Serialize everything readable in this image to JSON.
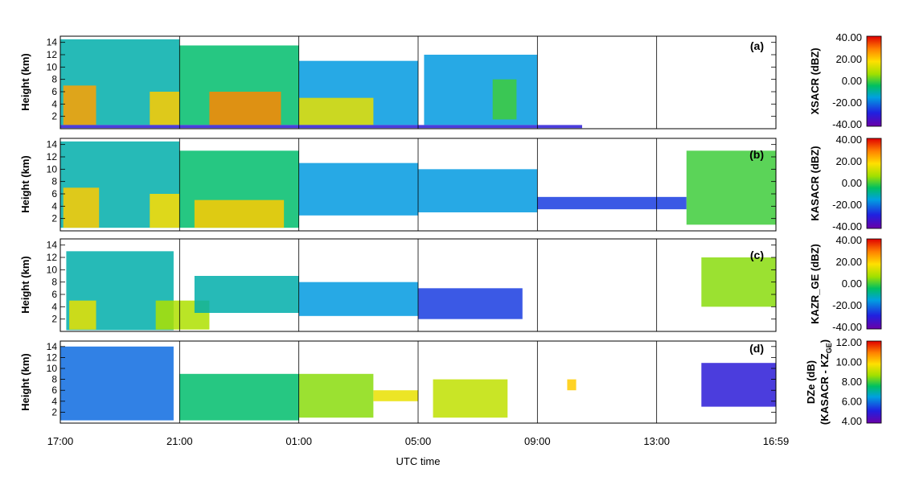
{
  "figure": {
    "xlabel": "UTC time",
    "time_ticks": [
      "17:00",
      "21:00",
      "01:00",
      "05:00",
      "09:00",
      "13:00",
      "16:59"
    ]
  },
  "chart_data": [
    {
      "type": "heatmap",
      "tag": "(a)",
      "ylabel": "Height (km)",
      "y_ticks": [
        2,
        4,
        6,
        8,
        10,
        12,
        14
      ],
      "ylim": [
        0,
        15
      ],
      "colorbar": {
        "title": "XSACR (dBZ)",
        "labels": [
          "40.00",
          "20.00",
          "0.00",
          "-20.00",
          "-40.00"
        ],
        "range": [
          -40,
          40
        ]
      },
      "data_end_hour": 17.5,
      "layers": [
        {
          "x0": 0,
          "x1": 4,
          "y0": 0.6,
          "y1": 14.5,
          "value": -10
        },
        {
          "x0": 0.1,
          "x1": 1.2,
          "y0": 0.6,
          "y1": 7,
          "value": 25
        },
        {
          "x0": 3.0,
          "x1": 4.0,
          "y0": 0.6,
          "y1": 6,
          "value": 20
        },
        {
          "x0": 4,
          "x1": 8,
          "y0": 0.6,
          "y1": 13.5,
          "value": -5
        },
        {
          "x0": 5,
          "x1": 7.4,
          "y0": 0.6,
          "y1": 6,
          "value": 28
        },
        {
          "x0": 8,
          "x1": 12,
          "y0": 0.6,
          "y1": 11,
          "value": -15
        },
        {
          "x0": 8,
          "x1": 10.5,
          "y0": 0.6,
          "y1": 5,
          "value": 15
        },
        {
          "x0": 12.2,
          "x1": 16,
          "y0": 0.6,
          "y1": 12,
          "value": -15
        },
        {
          "x0": 14.5,
          "x1": 15.3,
          "y0": 1.5,
          "y1": 8,
          "value": 0
        },
        {
          "x0": 0,
          "x1": 17.5,
          "y0": 0.1,
          "y1": 0.6,
          "value": -30
        }
      ]
    },
    {
      "type": "heatmap",
      "tag": "(b)",
      "ylabel": "Height (km)",
      "y_ticks": [
        2,
        4,
        6,
        8,
        10,
        12,
        14
      ],
      "ylim": [
        0,
        15
      ],
      "colorbar": {
        "title": "KASACR (dBZ)",
        "labels": [
          "40.00",
          "20.00",
          "0.00",
          "-20.00",
          "-40.00"
        ],
        "range": [
          -40,
          40
        ]
      },
      "data_end_hour": 24,
      "layers": [
        {
          "x0": 0,
          "x1": 4,
          "y0": 0.5,
          "y1": 14.5,
          "value": -10
        },
        {
          "x0": 0.1,
          "x1": 1.3,
          "y0": 0.5,
          "y1": 7,
          "value": 20
        },
        {
          "x0": 3,
          "x1": 4,
          "y0": 0.5,
          "y1": 6,
          "value": 18
        },
        {
          "x0": 4,
          "x1": 8,
          "y0": 0.5,
          "y1": 13,
          "value": -5
        },
        {
          "x0": 4.5,
          "x1": 7.5,
          "y0": 0.5,
          "y1": 5,
          "value": 20
        },
        {
          "x0": 8,
          "x1": 12,
          "y0": 2.5,
          "y1": 11,
          "value": -15
        },
        {
          "x0": 12,
          "x1": 16,
          "y0": 3,
          "y1": 10,
          "value": -15
        },
        {
          "x0": 16,
          "x1": 21,
          "y0": 3.5,
          "y1": 5.5,
          "value": -25
        },
        {
          "x0": 21,
          "x1": 24,
          "y0": 1,
          "y1": 13,
          "value": 0
        }
      ]
    },
    {
      "type": "heatmap",
      "tag": "(c)",
      "ylabel": "Height (km)",
      "y_ticks": [
        2,
        4,
        6,
        8,
        10,
        12,
        14
      ],
      "ylim": [
        0,
        15
      ],
      "colorbar": {
        "title": "KAZR_GE (dBZ)",
        "labels": [
          "40.00",
          "20.00",
          "0.00",
          "-20.00",
          "-40.00"
        ],
        "range": [
          -40,
          40
        ]
      },
      "data_end_hour": 24,
      "layers": [
        {
          "x0": 0.2,
          "x1": 3.8,
          "y0": 0.2,
          "y1": 13,
          "value": -10
        },
        {
          "x0": 0.3,
          "x1": 1.2,
          "y0": 0.3,
          "y1": 5,
          "value": 15
        },
        {
          "x0": 3.2,
          "x1": 5,
          "y0": 0.3,
          "y1": 5,
          "value": 8
        },
        {
          "x0": 4.5,
          "x1": 8,
          "y0": 3,
          "y1": 9,
          "value": -10
        },
        {
          "x0": 8,
          "x1": 12,
          "y0": 2.5,
          "y1": 8,
          "value": -15
        },
        {
          "x0": 12,
          "x1": 15.5,
          "y0": 2,
          "y1": 7,
          "value": -25
        },
        {
          "x0": 21.5,
          "x1": 24,
          "y0": 4,
          "y1": 12,
          "value": 5
        }
      ]
    },
    {
      "type": "heatmap",
      "tag": "(d)",
      "ylabel": "Height (km)",
      "y_ticks": [
        2,
        4,
        6,
        8,
        10,
        12,
        14
      ],
      "ylim": [
        0,
        15
      ],
      "colorbar": {
        "title_line1": "DZe (dB)",
        "title_line2": "(KASACR - KZ",
        "title_sub": "GE",
        "title_end": ")",
        "labels": [
          "12.00",
          "10.00",
          "8.00",
          "6.00",
          "4.00"
        ],
        "range": [
          4,
          12
        ]
      },
      "data_end_hour": 24,
      "layers": [
        {
          "x0": 0,
          "x1": 3.8,
          "y0": 0.5,
          "y1": 14,
          "value": 6
        },
        {
          "x0": 4,
          "x1": 8,
          "y0": 0.5,
          "y1": 9,
          "value": 7.5
        },
        {
          "x0": 8,
          "x1": 10.5,
          "y0": 1,
          "y1": 9,
          "value": 8.5
        },
        {
          "x0": 10.5,
          "x1": 12,
          "y0": 4,
          "y1": 6,
          "value": 9.5
        },
        {
          "x0": 12.5,
          "x1": 15,
          "y0": 1,
          "y1": 8,
          "value": 9
        },
        {
          "x0": 17,
          "x1": 17.3,
          "y0": 6,
          "y1": 8,
          "value": 10
        },
        {
          "x0": 21.5,
          "x1": 24,
          "y0": 3,
          "y1": 11,
          "value": 5
        }
      ]
    }
  ]
}
